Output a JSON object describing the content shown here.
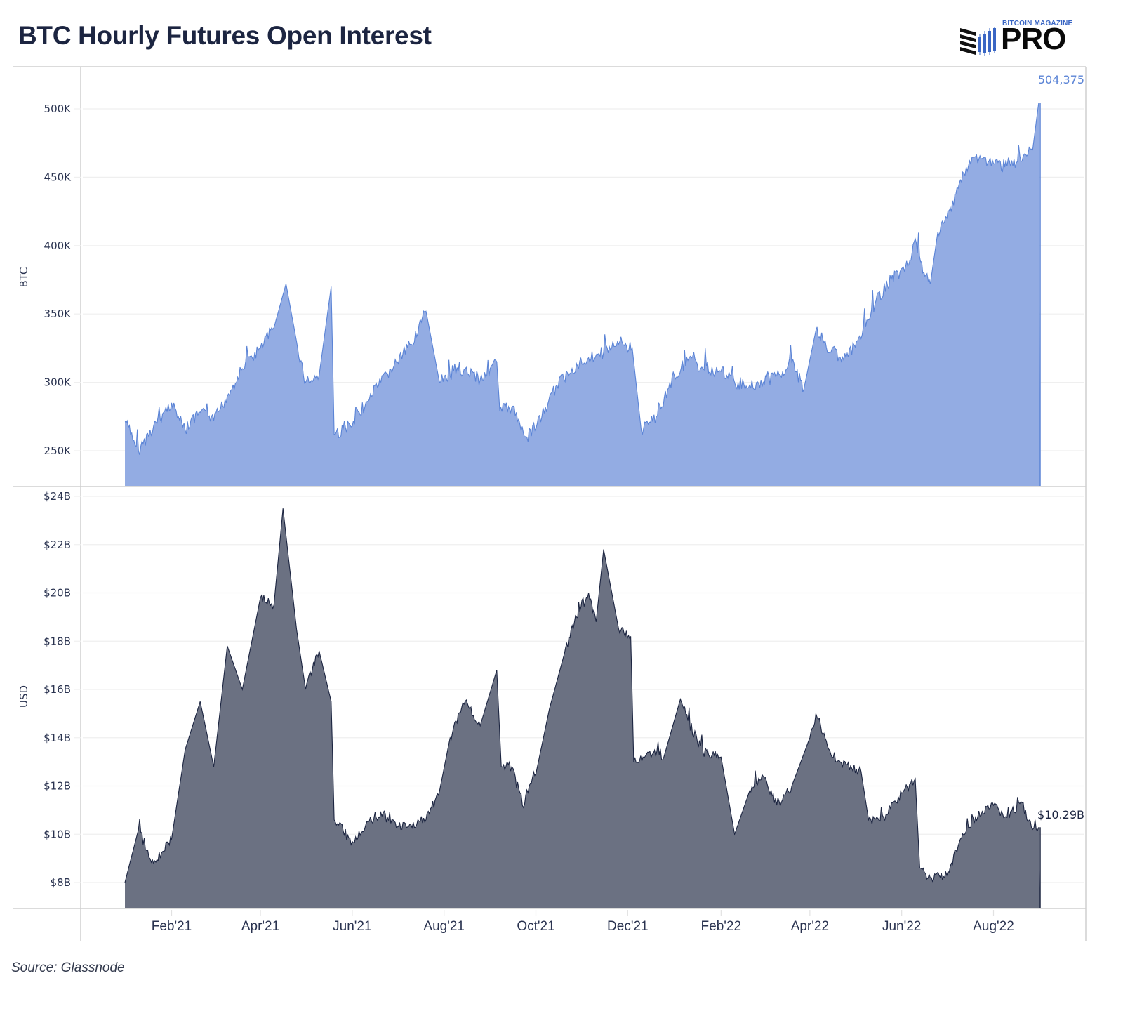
{
  "header": {
    "title": "BTC Hourly Futures Open Interest",
    "logo_top": "BITCOIN MAGAZINE",
    "logo_main": "PRO"
  },
  "footer": {
    "source": "Source: Glassnode"
  },
  "colors": {
    "btc_fill": "#93ace3",
    "btc_line": "#5b84d6",
    "usd_fill": "#6b7182",
    "usd_line": "#1c2541",
    "grid": "#efefef",
    "axis": "#cfcfcf",
    "logo_blue": "#3a66c4"
  },
  "chart_data": [
    {
      "type": "area",
      "title": "BTC Hourly Futures Open Interest",
      "panel": "top",
      "ylabel": "BTC",
      "xlabel": "",
      "ylim": [
        224000,
        530000
      ],
      "yticks": [
        250000,
        300000,
        350000,
        400000,
        450000,
        500000
      ],
      "ytick_labels": [
        "250K",
        "300K",
        "350K",
        "400K",
        "450K",
        "500K"
      ],
      "grid": true,
      "annotation": "504,375",
      "x": [
        "2021-01-01",
        "2021-01-10",
        "2021-01-20",
        "2021-02-01",
        "2021-02-10",
        "2021-02-20",
        "2021-03-01",
        "2021-03-10",
        "2021-03-20",
        "2021-04-01",
        "2021-04-10",
        "2021-04-18",
        "2021-04-25",
        "2021-05-01",
        "2021-05-10",
        "2021-05-18",
        "2021-05-20",
        "2021-06-01",
        "2021-06-10",
        "2021-06-20",
        "2021-07-01",
        "2021-07-10",
        "2021-07-20",
        "2021-07-29",
        "2021-08-05",
        "2021-08-15",
        "2021-08-25",
        "2021-09-05",
        "2021-09-07",
        "2021-09-15",
        "2021-09-25",
        "2021-10-05",
        "2021-10-15",
        "2021-10-25",
        "2021-11-05",
        "2021-11-15",
        "2021-11-25",
        "2021-12-04",
        "2021-12-10",
        "2021-12-20",
        "2022-01-01",
        "2022-01-10",
        "2022-01-20",
        "2022-02-01",
        "2022-02-10",
        "2022-02-20",
        "2022-03-01",
        "2022-03-10",
        "2022-03-20",
        "2022-03-28",
        "2022-04-05",
        "2022-04-15",
        "2022-04-25",
        "2022-05-05",
        "2022-05-15",
        "2022-05-25",
        "2022-06-05",
        "2022-06-10",
        "2022-06-15",
        "2022-06-20",
        "2022-06-25",
        "2022-07-01",
        "2022-07-10",
        "2022-07-20",
        "2022-08-01",
        "2022-08-10",
        "2022-08-20",
        "2022-08-27",
        "2022-08-31"
      ],
      "values": [
        272000,
        250000,
        268000,
        285000,
        265000,
        278000,
        272000,
        290000,
        310000,
        325000,
        340000,
        372000,
        330000,
        300000,
        305000,
        370000,
        262000,
        268000,
        285000,
        300000,
        315000,
        328000,
        352000,
        300000,
        305000,
        310000,
        302000,
        315000,
        280000,
        282000,
        260000,
        275000,
        298000,
        310000,
        318000,
        322000,
        328000,
        325000,
        265000,
        275000,
        305000,
        316000,
        310000,
        308000,
        300000,
        298000,
        300000,
        305000,
        315000,
        295000,
        338000,
        322000,
        318000,
        332000,
        360000,
        375000,
        385000,
        405000,
        380000,
        372000,
        410000,
        420000,
        448000,
        465000,
        460000,
        458000,
        462000,
        470000,
        504375
      ]
    },
    {
      "type": "area",
      "panel": "bottom",
      "ylabel": "USD",
      "xlabel": "",
      "ylim": [
        6950000000,
        24100000000
      ],
      "yticks": [
        8000000000,
        10000000000,
        12000000000,
        14000000000,
        16000000000,
        18000000000,
        20000000000,
        22000000000,
        24000000000
      ],
      "ytick_labels": [
        "$8B",
        "$10B",
        "$12B",
        "$14B",
        "$16B",
        "$18B",
        "$20B",
        "$22B",
        "$24B"
      ],
      "grid": true,
      "annotation": "$10.29B",
      "x": [
        "2021-01-01",
        "2021-01-10",
        "2021-01-20",
        "2021-02-01",
        "2021-02-10",
        "2021-02-20",
        "2021-03-01",
        "2021-03-10",
        "2021-03-20",
        "2021-04-01",
        "2021-04-10",
        "2021-04-16",
        "2021-04-25",
        "2021-05-01",
        "2021-05-10",
        "2021-05-18",
        "2021-05-20",
        "2021-06-01",
        "2021-06-10",
        "2021-06-20",
        "2021-07-01",
        "2021-07-10",
        "2021-07-20",
        "2021-07-29",
        "2021-08-05",
        "2021-08-15",
        "2021-08-25",
        "2021-09-05",
        "2021-09-08",
        "2021-09-15",
        "2021-09-22",
        "2021-10-01",
        "2021-10-10",
        "2021-10-20",
        "2021-10-28",
        "2021-11-05",
        "2021-11-10",
        "2021-11-15",
        "2021-11-25",
        "2021-12-03",
        "2021-12-05",
        "2021-12-15",
        "2021-12-25",
        "2022-01-05",
        "2022-01-10",
        "2022-01-20",
        "2022-02-01",
        "2022-02-10",
        "2022-02-20",
        "2022-03-01",
        "2022-03-10",
        "2022-03-20",
        "2022-04-01",
        "2022-04-05",
        "2022-04-15",
        "2022-04-25",
        "2022-05-05",
        "2022-05-10",
        "2022-05-20",
        "2022-06-01",
        "2022-06-10",
        "2022-06-13",
        "2022-06-20",
        "2022-07-01",
        "2022-07-10",
        "2022-07-20",
        "2022-08-01",
        "2022-08-10",
        "2022-08-20",
        "2022-08-27",
        "2022-08-31"
      ],
      "values": [
        8000000000,
        10200000000,
        8800000000,
        9800000000,
        13500000000,
        15500000000,
        12800000000,
        17800000000,
        16000000000,
        19800000000,
        19500000000,
        23500000000,
        18500000000,
        16000000000,
        17600000000,
        15500000000,
        10600000000,
        9700000000,
        10400000000,
        10900000000,
        10300000000,
        10400000000,
        10600000000,
        11800000000,
        14000000000,
        15500000000,
        14500000000,
        16800000000,
        12800000000,
        12800000000,
        11200000000,
        12500000000,
        15200000000,
        17500000000,
        19000000000,
        20000000000,
        18800000000,
        21800000000,
        18500000000,
        18200000000,
        13000000000,
        13400000000,
        13200000000,
        15600000000,
        14700000000,
        13400000000,
        13200000000,
        10000000000,
        11800000000,
        12400000000,
        11200000000,
        12000000000,
        14000000000,
        15000000000,
        13300000000,
        12900000000,
        12600000000,
        10600000000,
        10700000000,
        11700000000,
        12300000000,
        8600000000,
        8200000000,
        8300000000,
        9800000000,
        10700000000,
        11200000000,
        10700000000,
        11300000000,
        10200000000,
        10290000000
      ]
    }
  ],
  "x_axis": {
    "ticks": [
      "Feb'21",
      "Apr'21",
      "Jun'21",
      "Aug'21",
      "Oct'21",
      "Dec'21",
      "Feb'22",
      "Apr'22",
      "Jun'22",
      "Aug'22"
    ]
  }
}
